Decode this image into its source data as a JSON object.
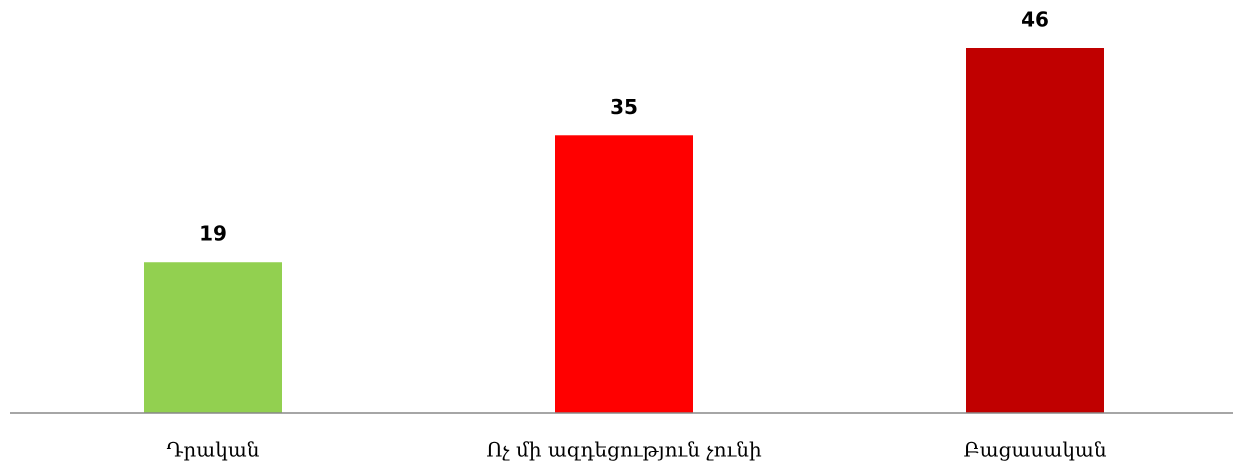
{
  "chart_data": {
    "type": "bar",
    "categories": [
      "Դրական",
      "Ոչ մի ազդեցություն չունի",
      "Բացասական"
    ],
    "values": [
      19,
      35,
      46
    ],
    "colors": [
      "#92d050",
      "#ff0000",
      "#c00000"
    ],
    "data_labels": true
  }
}
